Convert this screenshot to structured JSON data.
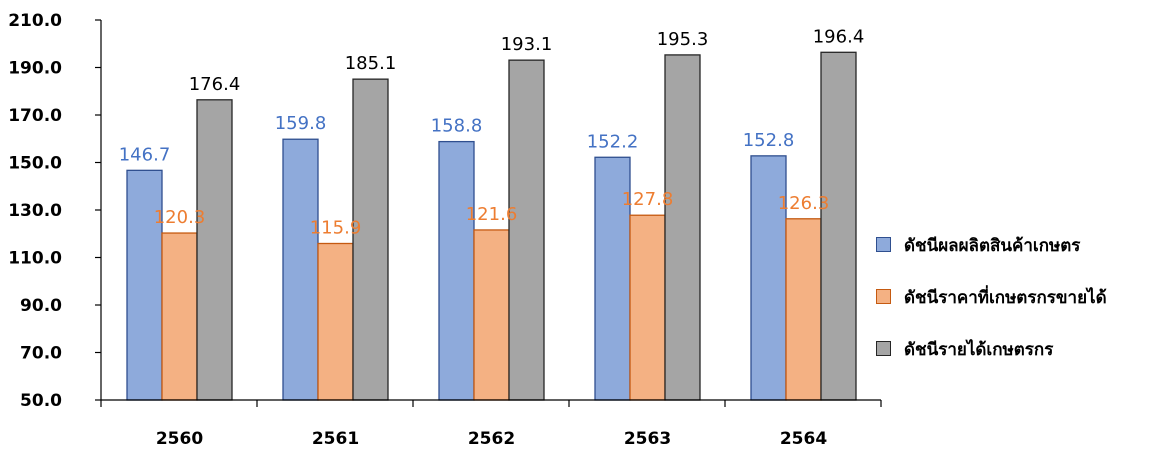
{
  "chart_data": {
    "type": "bar",
    "categories": [
      "2560",
      "2561",
      "2562",
      "2563",
      "2564"
    ],
    "series": [
      {
        "name": "ดัชนีผลผลิตสินค้าเกษตร",
        "values": [
          146.7,
          159.8,
          158.8,
          152.2,
          152.8
        ],
        "color": "#8eaadb",
        "border": "#2f4f8f",
        "label_color": "#4472c4"
      },
      {
        "name": "ดัชนีราคาที่เกษตรกรขายได้",
        "values": [
          120.3,
          115.9,
          121.6,
          127.8,
          126.3
        ],
        "color": "#f4b183",
        "border": "#c55a11",
        "label_color": "#ed7d31"
      },
      {
        "name": "ดัชนีรายได้เกษตรกร",
        "values": [
          176.4,
          185.1,
          193.1,
          195.3,
          196.4
        ],
        "color": "#a5a5a5",
        "border": "#262626",
        "label_color": "#000000"
      }
    ],
    "y_ticks": [
      "50.0",
      "70.0",
      "90.0",
      "110.0",
      "130.0",
      "150.0",
      "170.0",
      "190.0",
      "210.0"
    ],
    "ylim": [
      50,
      210
    ],
    "grid": false,
    "legend_position": "right"
  }
}
